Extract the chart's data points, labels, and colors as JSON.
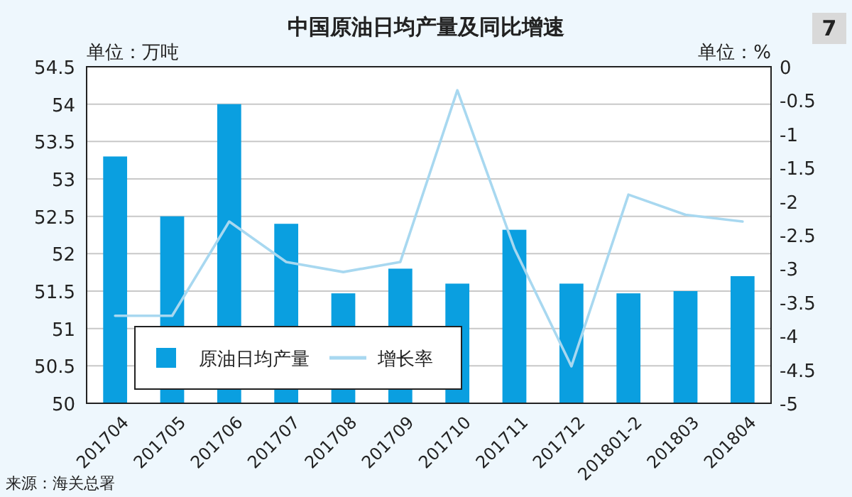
{
  "chart_data": {
    "type": "bar",
    "title": "中国原油日均产量及同比增速",
    "categories": [
      "201704",
      "201705",
      "201706",
      "201707",
      "201708",
      "201709",
      "201710",
      "201711",
      "201712",
      "201801-2",
      "201803",
      "201804"
    ],
    "series": [
      {
        "name": "原油日均产量",
        "color": "#0a9fe0",
        "values": [
          53.3,
          52.5,
          54.0,
          52.4,
          51.47,
          51.8,
          51.6,
          52.32,
          51.6,
          51.47,
          51.5,
          51.7
        ]
      },
      {
        "name": "增长率",
        "type": "line",
        "axis": "y2",
        "color": "#a8d8f0",
        "values": [
          -3.7,
          -3.7,
          -2.3,
          -2.9,
          -3.05,
          -2.9,
          -0.35,
          -2.7,
          -4.45,
          -1.9,
          -2.2,
          -2.3
        ]
      }
    ],
    "ylim": [
      50,
      54.5
    ],
    "yticks": [
      50,
      50.5,
      51,
      51.5,
      52,
      52.5,
      53,
      53.5,
      54,
      54.5
    ],
    "y2lim": [
      -5,
      0
    ],
    "y2ticks": [
      -5,
      -4.5,
      -4,
      -3.5,
      -3,
      -2.5,
      -2,
      -1.5,
      -1,
      -0.5,
      0
    ],
    "grid": "y",
    "legend": "bottom left",
    "annotations": [
      "单位：万吨",
      "单位：%",
      "来源：海关总署",
      "7"
    ]
  }
}
